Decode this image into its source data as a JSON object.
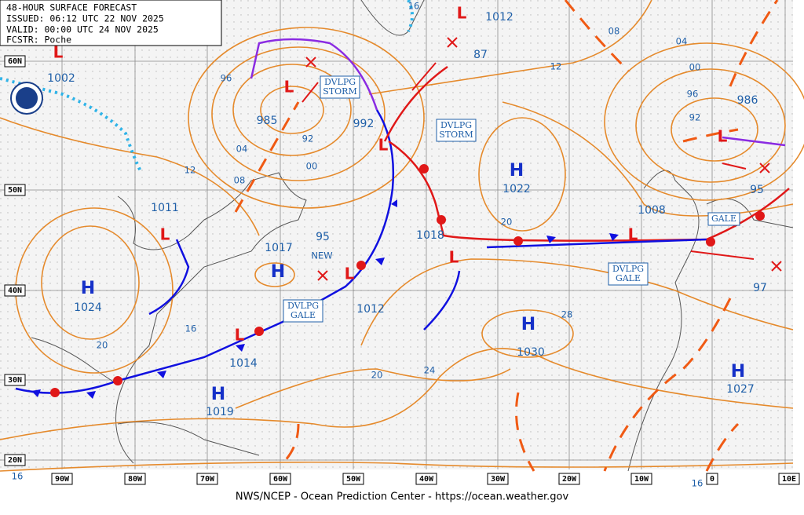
{
  "header": {
    "lines": [
      "48-HOUR SURFACE FORECAST",
      "ISSUED: 06:12 UTC 22 NOV 2025",
      "VALID:  00:00 UTC 24 NOV 2025",
      "FCSTR:  Poche"
    ]
  },
  "lat_labels": [
    "60N",
    "50N",
    "40N",
    "30N",
    "20N"
  ],
  "lon_labels": [
    "90W",
    "80W",
    "70W",
    "60W",
    "50W",
    "40W",
    "30W",
    "20W",
    "10W",
    "0",
    "10E"
  ],
  "highs": [
    {
      "symbol": "H",
      "value": "1024"
    },
    {
      "symbol": "H",
      "value": "1017"
    },
    {
      "symbol": "H",
      "value": "1019"
    },
    {
      "symbol": "H",
      "value": "1022"
    },
    {
      "symbol": "H",
      "value": "1030"
    },
    {
      "symbol": "H",
      "value": "1027"
    }
  ],
  "lows": [
    {
      "symbol": "L",
      "value": "1002"
    },
    {
      "symbol": "L",
      "value": "985"
    },
    {
      "symbol": "L",
      "value": "992"
    },
    {
      "symbol": "L",
      "value": "1011"
    },
    {
      "symbol": "L",
      "value": "95"
    },
    {
      "symbol": "L",
      "value": "1014"
    },
    {
      "symbol": "L",
      "value": "1018"
    },
    {
      "symbol": "L",
      "value": "1008"
    },
    {
      "symbol": "L",
      "value": "986"
    },
    {
      "symbol": "L",
      "value": "1012"
    }
  ],
  "other_center_labels": [
    "NEW",
    "87",
    "95",
    "97",
    "1012"
  ],
  "isobar_labels": [
    "96",
    "92",
    "04",
    "00",
    "08",
    "12",
    "16",
    "08",
    "04",
    "00",
    "96",
    "92",
    "12",
    "20",
    "28",
    "24",
    "20",
    "16",
    "20",
    "16",
    "16"
  ],
  "annotations": [
    [
      "DVLPG",
      "STORM"
    ],
    [
      "DVLPG",
      "STORM"
    ],
    [
      "DVLPG",
      "GALE"
    ],
    [
      "DVLPG",
      "GALE"
    ],
    [
      "GALE"
    ]
  ],
  "footer": "NWS/NCEP - Ocean Prediction Center - https://ocean.weather.gov"
}
